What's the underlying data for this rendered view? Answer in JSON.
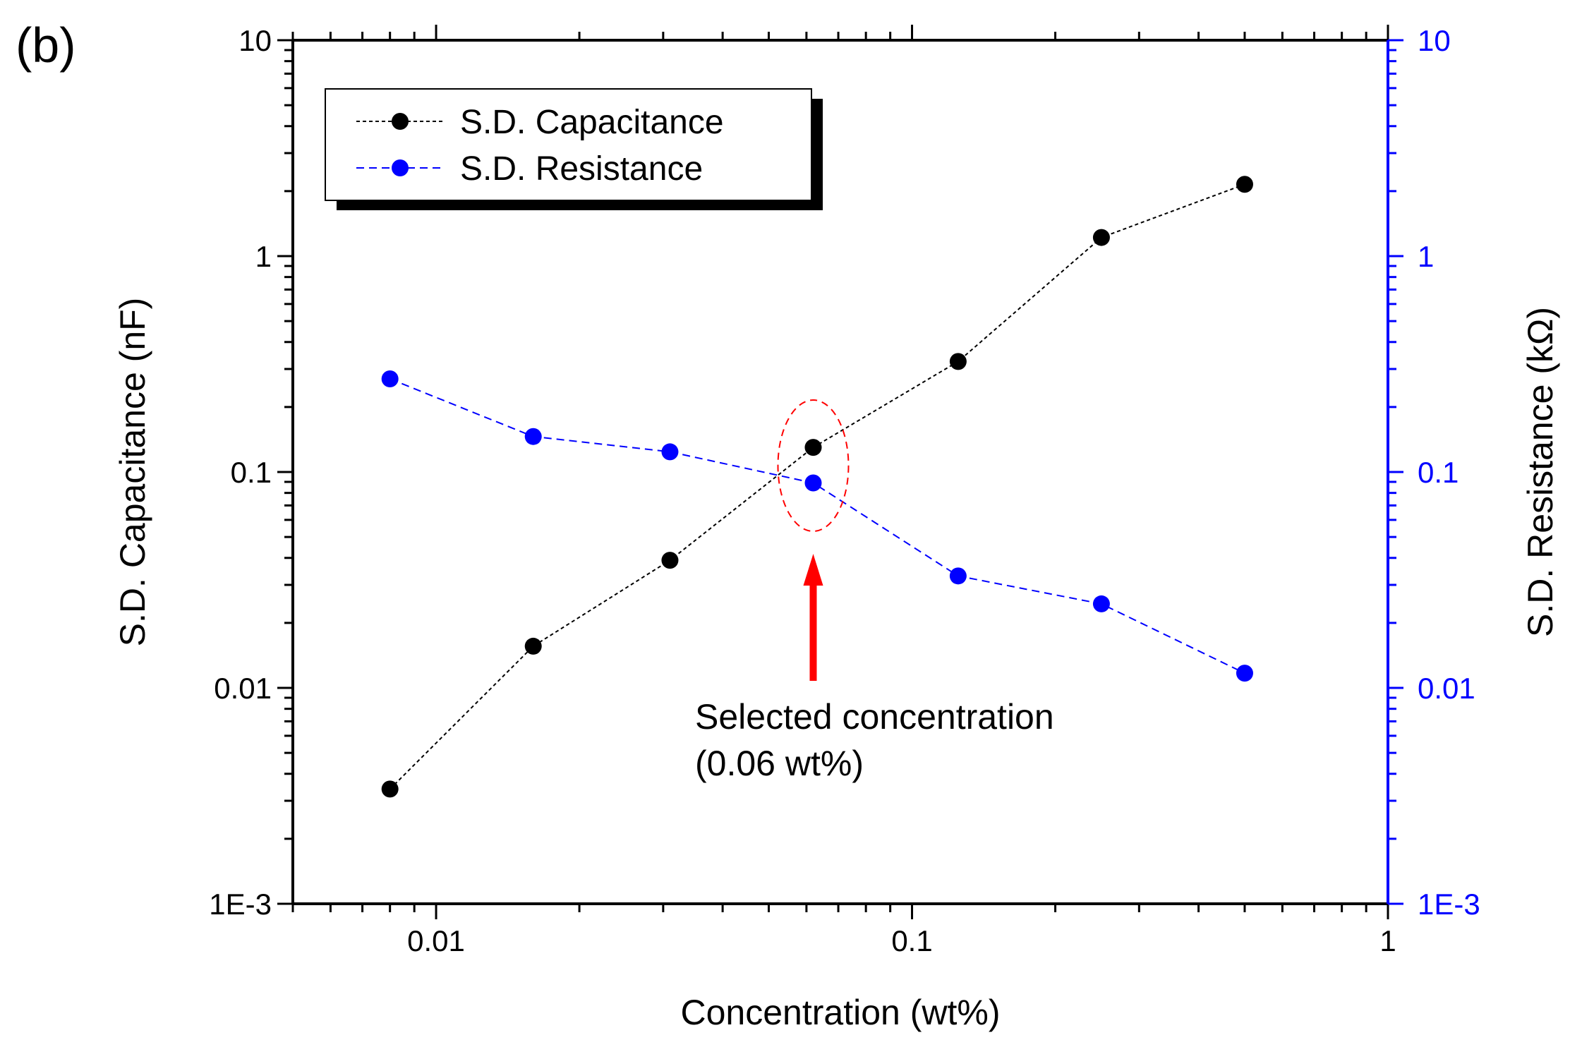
{
  "panel_label": "(b)",
  "chart_data": {
    "type": "scatter",
    "title": "",
    "xlabel": "Concentration (wt%)",
    "ylabel": "S.D. Capacitance (nF)",
    "y2label": "S.D. Resistance (kΩ)",
    "xscale": "log",
    "yscale": "log",
    "xlim": [
      0.005,
      1
    ],
    "ylim": [
      0.001,
      10
    ],
    "y2lim": [
      0.001,
      10
    ],
    "x_ticks": [
      {
        "value": 0.01,
        "label": "0.01"
      },
      {
        "value": 0.1,
        "label": "0.1"
      },
      {
        "value": 1,
        "label": "1"
      }
    ],
    "y_ticks": [
      {
        "value": 0.001,
        "label": "1E-3"
      },
      {
        "value": 0.01,
        "label": "0.01"
      },
      {
        "value": 0.1,
        "label": "0.1"
      },
      {
        "value": 1,
        "label": "1"
      },
      {
        "value": 10,
        "label": "10"
      }
    ],
    "y2_ticks": [
      {
        "value": 0.001,
        "label": "1E-3"
      },
      {
        "value": 0.01,
        "label": "0.01"
      },
      {
        "value": 0.1,
        "label": "0.1"
      },
      {
        "value": 1,
        "label": "1"
      },
      {
        "value": 10,
        "label": "10"
      }
    ],
    "legend_position": "top-left",
    "series": [
      {
        "name": "S.D. Capacitance",
        "axis": "left",
        "color": "#000000",
        "line_style": "dotted",
        "x": [
          0.008,
          0.016,
          0.031,
          0.062,
          0.125,
          0.25,
          0.5
        ],
        "values": [
          0.0034,
          0.0156,
          0.039,
          0.13,
          0.325,
          1.22,
          2.15
        ]
      },
      {
        "name": "S.D. Resistance",
        "axis": "right",
        "color": "#0000ff",
        "line_style": "dashed",
        "x": [
          0.008,
          0.016,
          0.031,
          0.062,
          0.125,
          0.25,
          0.5
        ],
        "values": [
          0.27,
          0.146,
          0.124,
          0.089,
          0.033,
          0.0245,
          0.0117
        ]
      }
    ],
    "annotation": {
      "lines": [
        "Selected concentration",
        "(0.06 wt%)"
      ],
      "target_x": 0.062,
      "color": "#ff0000"
    }
  }
}
